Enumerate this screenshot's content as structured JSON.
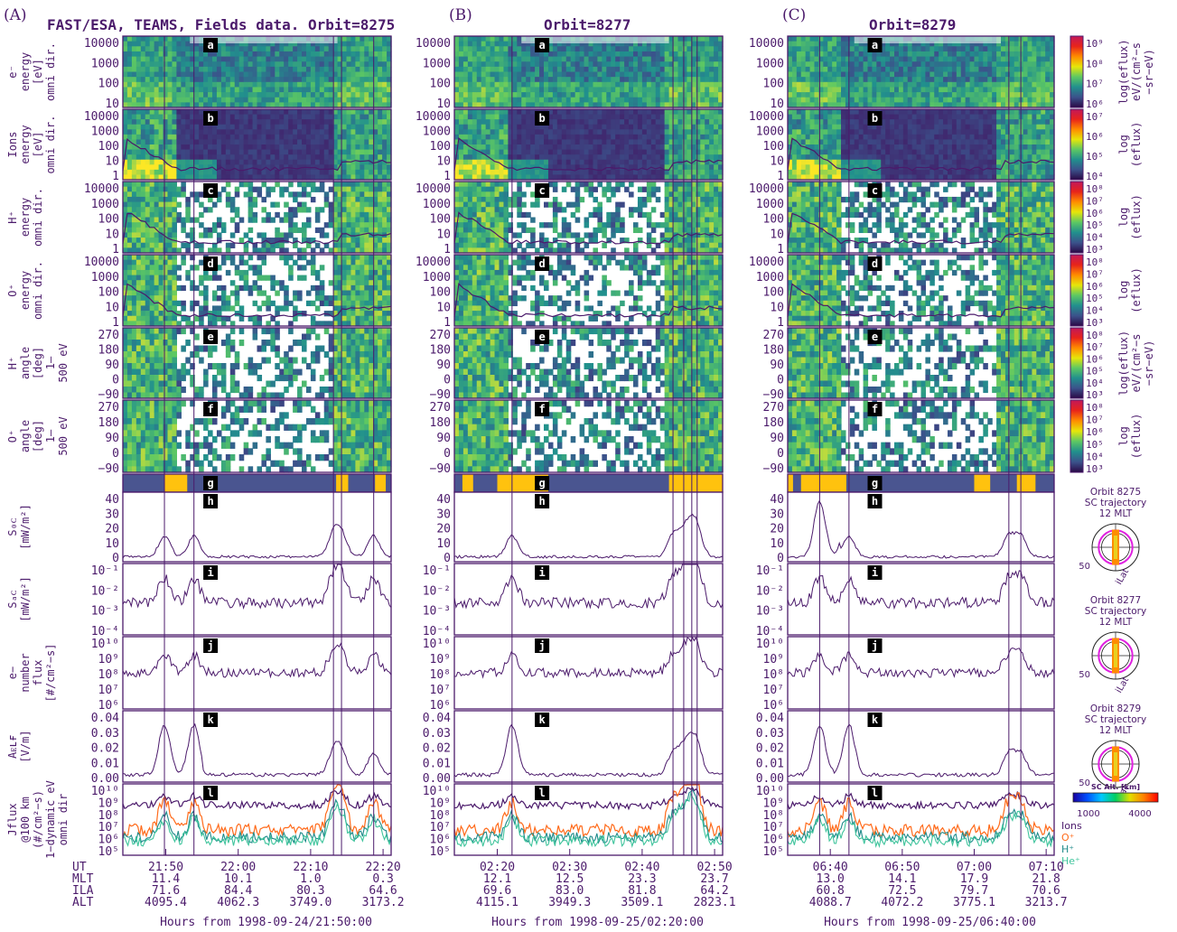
{
  "figure": {
    "column_tags": [
      "(A)",
      "(B)",
      "(C)"
    ],
    "column_titles": [
      "FAST/ESA, TEAMS, Fields data. Orbit=8275",
      "Orbit=8277",
      "Orbit=8279"
    ],
    "panel_tags": [
      "a",
      "b",
      "c",
      "d",
      "e",
      "f",
      "g",
      "h",
      "i",
      "j",
      "k",
      "l"
    ],
    "panel_ylabels": {
      "a": [
        "e⁻",
        "energy",
        "[eV]",
        "omni dir."
      ],
      "b": [
        "Ions",
        "energy",
        "[eV]",
        "omni dir."
      ],
      "c": [
        "H⁺",
        "energy",
        "omni dir."
      ],
      "d": [
        "O⁺",
        "energy",
        "omni dir."
      ],
      "e": [
        "H⁺",
        "angle",
        "[deg]",
        "1–",
        "500 eV"
      ],
      "f": [
        "O⁺",
        "angle",
        "[deg]",
        "1–",
        "500 eV"
      ],
      "h": [
        "S₀ᴄ",
        "[mW/m²]"
      ],
      "i": [
        "Sₐᴄ",
        "[mW/m²]"
      ],
      "j": [
        "e−",
        "number",
        "flux",
        "[#/cm²−s]"
      ],
      "k": [
        "Aᴇʟғ",
        "[V/m]"
      ],
      "l": [
        "Jflux",
        "@100 km",
        "(#/cm²−s)",
        "1−dynamic eV",
        "omni dir"
      ]
    },
    "tick_labels": {
      "a": [
        "10000",
        "1000",
        "100",
        "10"
      ],
      "b": [
        "10000",
        "1000",
        "100",
        "10",
        "1"
      ],
      "c": [
        "10000",
        "1000",
        "100",
        "10",
        "1"
      ],
      "d": [
        "10000",
        "1000",
        "100",
        "10",
        "1"
      ],
      "e": [
        "270",
        "180",
        "90",
        "0",
        "−90"
      ],
      "f": [
        "270",
        "180",
        "90",
        "0",
        "−90"
      ],
      "h": [
        "40",
        "30",
        "20",
        "10",
        "0"
      ],
      "i": [
        "10⁻¹",
        "10⁻²",
        "10⁻³",
        "10⁻⁴"
      ],
      "j": [
        "10¹⁰",
        "10⁹",
        "10⁸",
        "10⁷",
        "10⁶"
      ],
      "k": [
        "0.04",
        "0.03",
        "0.02",
        "0.01",
        "0.00"
      ],
      "l": [
        "10¹⁰",
        "10⁹",
        "10⁸",
        "10⁷",
        "10⁶",
        "10⁵"
      ]
    },
    "colorbars": [
      {
        "ticks": [
          "10⁹",
          "10⁸",
          "10⁷",
          "10⁶"
        ],
        "label": [
          "log(eflux)",
          "eV/(cm²−s",
          "−sr−eV)"
        ]
      },
      {
        "ticks": [
          "10⁷",
          "10⁶",
          "10⁵",
          "10⁴"
        ],
        "label": [
          "log",
          "(eflux)"
        ]
      },
      {
        "ticks": [
          "10⁸",
          "10⁷",
          "10⁶",
          "10⁵",
          "10⁴",
          "10³"
        ],
        "label": [
          "log",
          "(eflux)"
        ]
      },
      {
        "ticks": [
          "10⁸",
          "10⁷",
          "10⁶",
          "10⁵",
          "10⁴",
          "10³"
        ],
        "label": [
          "log",
          "(eflux)"
        ]
      },
      {
        "ticks": [
          "10⁸",
          "10⁷",
          "10⁶",
          "10⁵",
          "10⁴",
          "10³"
        ],
        "label": [
          "log(eflux)",
          "eV/(cm²−s",
          "−sr−eV)"
        ]
      },
      {
        "ticks": [
          "10⁸",
          "10⁷",
          "10⁶",
          "10⁵",
          "10⁴",
          "10³"
        ],
        "label": [
          "log",
          "(eflux)"
        ]
      }
    ],
    "dials": [
      {
        "orbit": "Orbit 8275",
        "title": "SC trajectory",
        "mlt": "12 MLT",
        "lat": "50",
        "ilat": "iLat"
      },
      {
        "orbit": "Orbit 8277",
        "title": "SC trajectory",
        "mlt": "12 MLT",
        "lat": "50",
        "ilat": "iLat"
      },
      {
        "orbit": "Orbit 8279",
        "title": "SC trajectory",
        "mlt": "12 MLT",
        "lat": "50",
        "ilat": "iLat"
      }
    ],
    "alt_bar": {
      "label": "SC Alt. [km]",
      "min": "1000",
      "max": "4000"
    },
    "legend": [
      {
        "name": "Ions",
        "color": "#4b1a6b"
      },
      {
        "name": "O⁺",
        "color": "#ff6a1a"
      },
      {
        "name": "H⁺",
        "color": "#1f8a8a"
      },
      {
        "name": "He⁺",
        "color": "#3fc49c"
      }
    ],
    "row_names": [
      "UT",
      "MLT",
      "ILA",
      "ALT"
    ],
    "columns": [
      {
        "ut": [
          "21:50",
          "22:00",
          "22:10",
          "22:20"
        ],
        "mlt": [
          "11.4",
          "10.1",
          "1.0",
          "0.3"
        ],
        "ila": [
          "71.6",
          "84.4",
          "80.3",
          "64.6"
        ],
        "alt": [
          "4095.4",
          "4062.3",
          "3749.0",
          "3173.2"
        ],
        "footer": "Hours from 1998-09-24/21:50:00"
      },
      {
        "ut": [
          "02:20",
          "02:30",
          "02:40",
          "02:50"
        ],
        "mlt": [
          "12.1",
          "12.5",
          "23.3",
          "23.7"
        ],
        "ila": [
          "69.6",
          "83.0",
          "81.8",
          "64.2"
        ],
        "alt": [
          "4115.1",
          "3949.3",
          "3509.1",
          "2823.1"
        ],
        "footer": "Hours from 1998-09-25/02:20:00"
      },
      {
        "ut": [
          "06:40",
          "06:50",
          "07:00",
          "07:10"
        ],
        "mlt": [
          "13.0",
          "14.1",
          "17.9",
          "21.8"
        ],
        "ila": [
          "60.8",
          "72.5",
          "79.7",
          "70.6"
        ],
        "alt": [
          "4088.7",
          "4072.2",
          "3775.1",
          "3213.7"
        ],
        "footer": "Hours from 1998-09-25/06:40:00"
      }
    ]
  },
  "chart_data": {
    "type": "line",
    "title": "FAST/ESA, TEAMS, Fields data.",
    "orbits": [
      "8275",
      "8277",
      "8279"
    ],
    "panels": [
      "e⁻ energy",
      "Ions energy",
      "H⁺ energy",
      "O⁺ energy",
      "H⁺ angle",
      "O⁺ angle",
      "g",
      "S_DC",
      "S_AC",
      "e− number flux",
      "A_ELF",
      "Jflux"
    ],
    "series": [
      {
        "panel": "S_DC",
        "orbit": "8275",
        "x_min": [
          0,
          10,
          20,
          30,
          40
        ],
        "values": [
          1,
          4,
          2,
          3,
          3
        ]
      },
      {
        "panel": "S_DC",
        "orbit": "8277",
        "x_min": [
          0,
          10,
          20,
          30,
          40
        ],
        "values": [
          3,
          2,
          2,
          5,
          2
        ]
      },
      {
        "panel": "S_DC",
        "orbit": "8279",
        "x_min": [
          0,
          10,
          20,
          30,
          40
        ],
        "values": [
          3,
          5,
          3,
          3,
          2
        ]
      },
      {
        "panel": "A_ELF",
        "orbit": "8275",
        "x_min": [
          0,
          10,
          20,
          30,
          40
        ],
        "values": [
          0.002,
          0.003,
          0.004,
          0.003,
          0.002
        ]
      },
      {
        "panel": "A_ELF",
        "orbit": "8277",
        "x_min": [
          0,
          10,
          20,
          30,
          40
        ],
        "values": [
          0.003,
          0.002,
          0.002,
          0.004,
          0.003
        ]
      },
      {
        "panel": "A_ELF",
        "orbit": "8279",
        "x_min": [
          0,
          10,
          20,
          30,
          40
        ],
        "values": [
          0.004,
          0.003,
          0.002,
          0.002,
          0.002
        ]
      }
    ],
    "ylims": {
      "S_DC": [
        0,
        40
      ],
      "A_ELF": [
        0,
        0.04
      ]
    }
  }
}
